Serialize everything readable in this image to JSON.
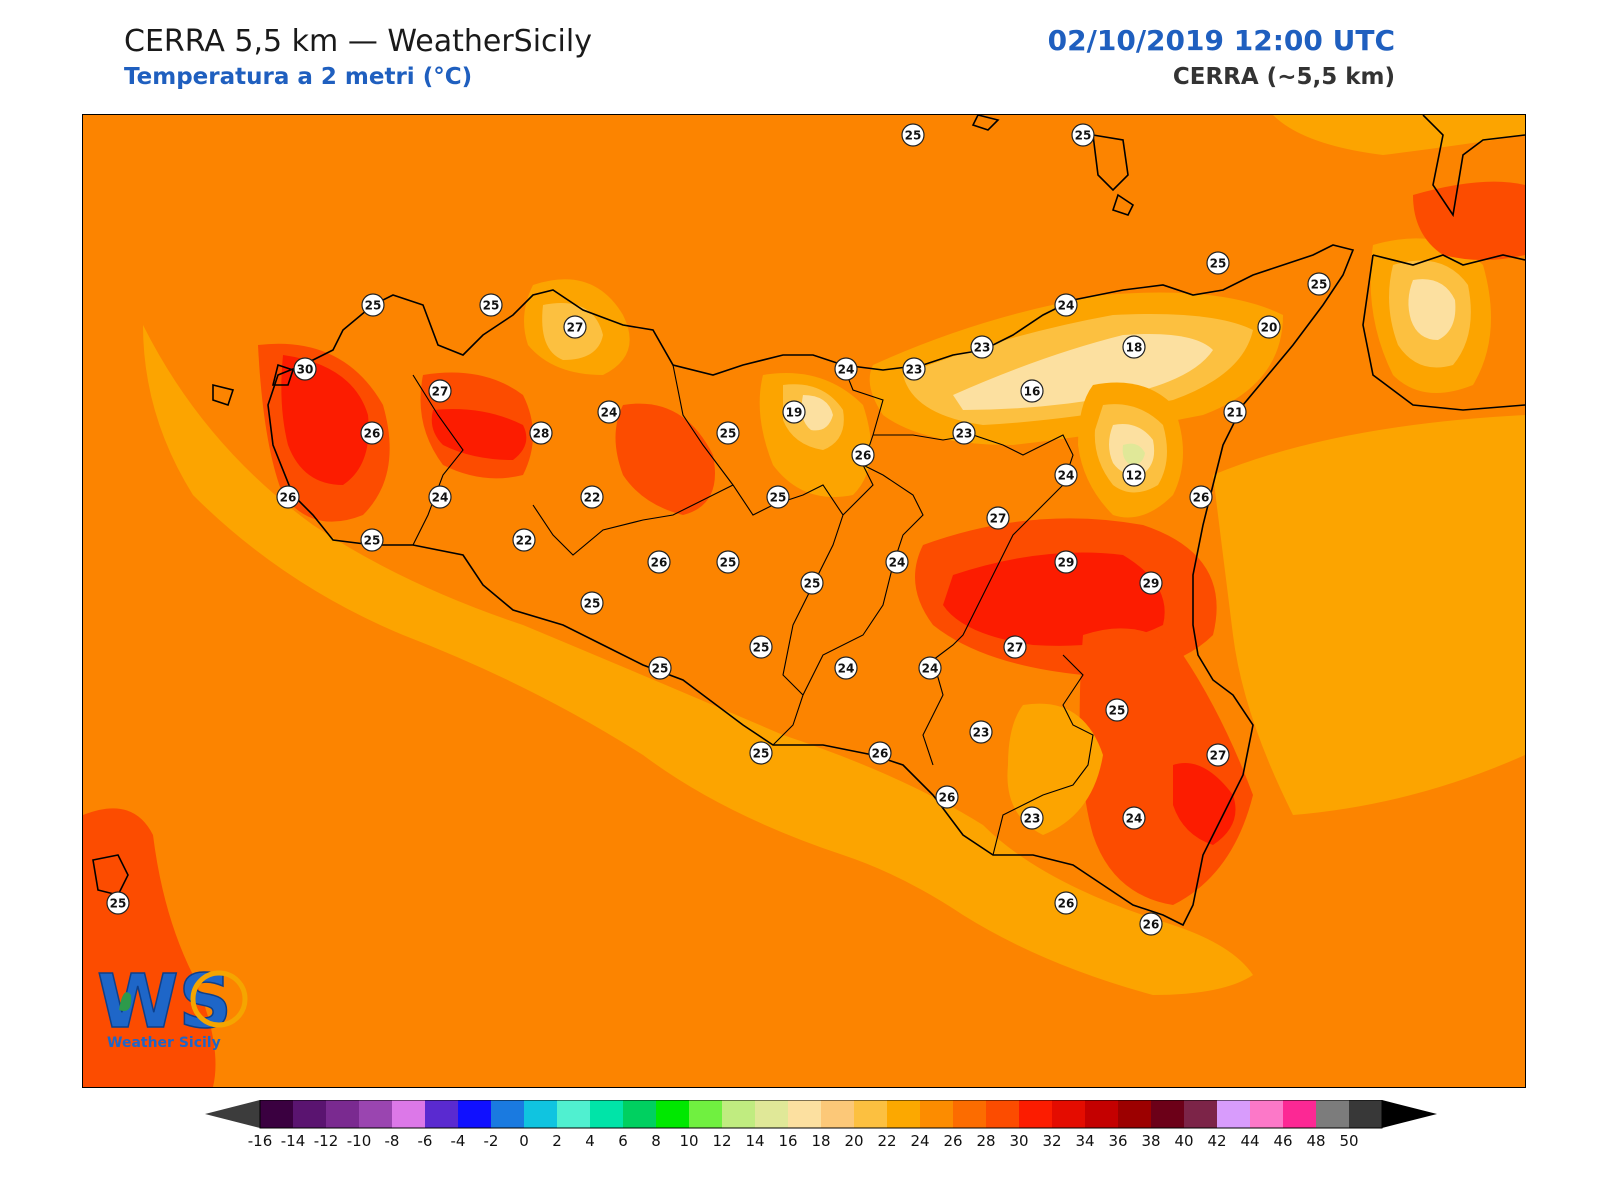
{
  "header": {
    "title": "CERRA 5,5 km — WeatherSicily",
    "subtitle": "Temperatura a 2 metri (°C)",
    "datetime": "02/10/2019 12:00 UTC",
    "model": "CERRA (~5,5 km)"
  },
  "logo": {
    "text": "WS",
    "caption": "Weather Sicily"
  },
  "map_values": [
    "25",
    "25",
    "25",
    "25",
    "27",
    "25",
    "24",
    "30",
    "27",
    "26",
    "28",
    "24",
    "25",
    "19",
    "24",
    "23",
    "23",
    "18",
    "16",
    "20",
    "25",
    "21",
    "23",
    "26",
    "24",
    "12",
    "26",
    "26",
    "24",
    "22",
    "25",
    "22",
    "27",
    "25",
    "26",
    "25",
    "24",
    "29",
    "29",
    "25",
    "25",
    "25",
    "25",
    "24",
    "27",
    "25",
    "24",
    "23",
    "27",
    "25",
    "26",
    "23",
    "26",
    "24",
    "26",
    "26",
    "25"
  ],
  "colorbar": {
    "ticks": [
      "-16",
      "-14",
      "-12",
      "-10",
      "-8",
      "-6",
      "-4",
      "-2",
      "0",
      "2",
      "4",
      "6",
      "8",
      "10",
      "12",
      "14",
      "16",
      "18",
      "20",
      "22",
      "24",
      "26",
      "28",
      "30",
      "32",
      "34",
      "36",
      "38",
      "40",
      "42",
      "44",
      "46",
      "48",
      "50"
    ],
    "colors": [
      "#3a0040",
      "#5a1470",
      "#7a2a90",
      "#9a45b0",
      "#dc78e8",
      "#5a2ad0",
      "#1010ff",
      "#1a7ae0",
      "#10c4e0",
      "#50f0d0",
      "#00e4a8",
      "#00d060",
      "#00e800",
      "#70f040",
      "#c0ec80",
      "#e0e898",
      "#fce0a0",
      "#fcc878",
      "#fcc040",
      "#fca800",
      "#fc8c00",
      "#fc6c00",
      "#fc4c00",
      "#fc1c00",
      "#e40c00",
      "#c40000",
      "#9c0000",
      "#6c0018",
      "#7c2448",
      "#d89cfc",
      "#fc78c8",
      "#fc2894",
      "#7c7c7c",
      "#383838"
    ],
    "under_color": "#3c3c3c",
    "over_color": "#000000"
  }
}
